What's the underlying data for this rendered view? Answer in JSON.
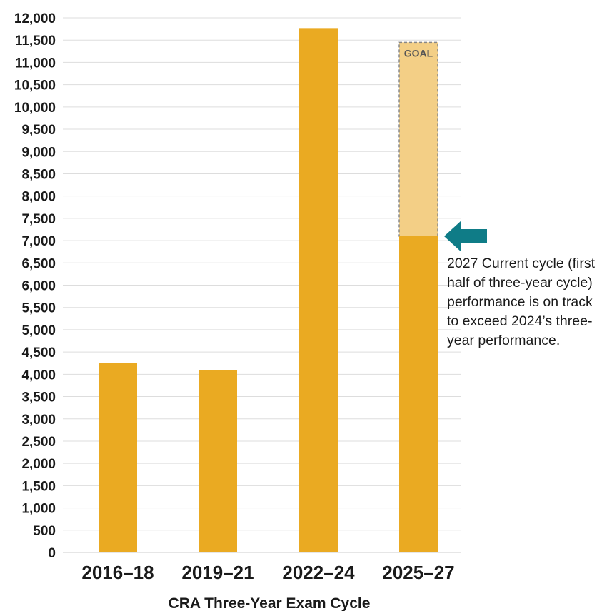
{
  "chart_data": {
    "type": "bar",
    "categories": [
      "2016–18",
      "2019–21",
      "2022–24",
      "2025–27"
    ],
    "values": [
      4250,
      4100,
      11770,
      7100
    ],
    "goal": {
      "category": "2025–27",
      "value": 11450,
      "label": "GOAL"
    },
    "xlabel": "CRA Three-Year Exam Cycle",
    "ylim": [
      0,
      12000
    ],
    "yticks": [
      0,
      500,
      1000,
      1500,
      2000,
      2500,
      3000,
      3500,
      4000,
      4500,
      5000,
      5500,
      6000,
      6500,
      7000,
      7500,
      8000,
      8500,
      9000,
      9500,
      10000,
      10500,
      11000,
      11500,
      12000
    ],
    "ytick_labels": [
      "0",
      "500",
      "1,000",
      "1,500",
      "2,000",
      "2,500",
      "3,000",
      "3,500",
      "4,000",
      "4,500",
      "5,000",
      "5,500",
      "6,000",
      "6,500",
      "7,000",
      "7,500",
      "8,000",
      "8,500",
      "9,000",
      "9,500",
      "10,000",
      "10,500",
      "11,000",
      "11,500",
      "12,000"
    ],
    "grid": true,
    "annotation": "2027 Current cycle (first half of three-year cycle) performance is on track to exceed 2024’s three-year performance.",
    "colors": {
      "bar": "#EAAA22",
      "goal_fill": "#F3CF86",
      "goal_border": "#888888",
      "arrow": "#0F7C87",
      "grid": "#dddddd"
    }
  }
}
